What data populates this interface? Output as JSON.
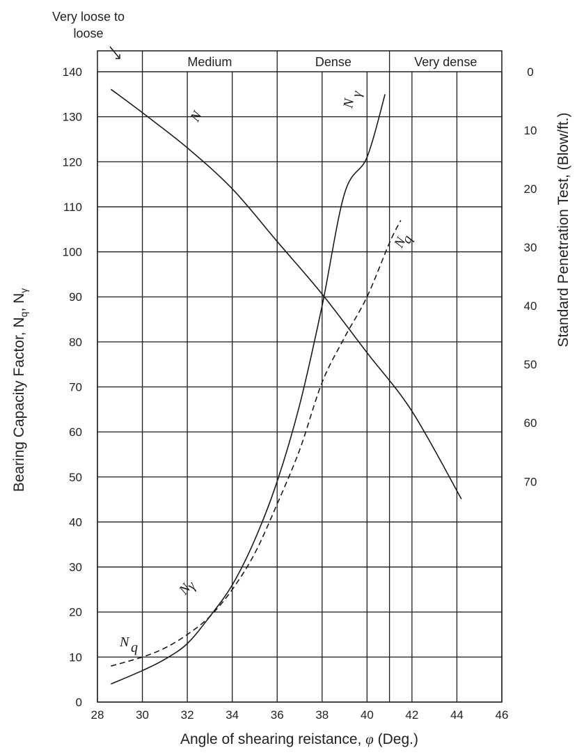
{
  "chart_data": {
    "type": "line",
    "xlabel_text": "Angle of shearing reistance, ",
    "xlabel_symbol": "φ",
    "xlabel_unit": " (Deg.)",
    "ylabel_main": "Bearing Capacity Factor, N",
    "ylabel_sub1": "q",
    "ylabel_sep": ", N",
    "ylabel_sub2": "γ",
    "y2label": "Standard Penetration Test, (Blow/ft.)",
    "xlim": [
      28,
      46
    ],
    "ylim": [
      0,
      140
    ],
    "x_ticks": [
      "28",
      "30",
      "32",
      "34",
      "36",
      "38",
      "40",
      "42",
      "44",
      "46"
    ],
    "y_ticks": [
      "0",
      "10",
      "20",
      "30",
      "40",
      "50",
      "60",
      "70",
      "80",
      "90",
      "100",
      "110",
      "120",
      "130",
      "140"
    ],
    "y2_ticks": [
      "0",
      "10",
      "20",
      "30",
      "40",
      "50",
      "60",
      "70"
    ],
    "grid": true,
    "density_bands": [
      {
        "label": "Very loose to",
        "label2": "loose",
        "from": 28,
        "to": 30
      },
      {
        "label": "Medium",
        "from": 30,
        "to": 36
      },
      {
        "label": "Dense",
        "from": 36,
        "to": 41
      },
      {
        "label": "Very dense",
        "from": 41,
        "to": 46
      }
    ],
    "series": [
      {
        "name": "N",
        "style": "solid",
        "axis": "right (SPT, blows/ft)",
        "x": [
          28.6,
          30,
          32,
          34,
          36,
          38,
          40,
          42,
          44.2
        ],
        "y": [
          3,
          7,
          13,
          20,
          29,
          38,
          48,
          58,
          73
        ]
      },
      {
        "name": "N",
        "subscript": "γ",
        "style": "solid",
        "axis": "left",
        "x": [
          28.6,
          30,
          31,
          32,
          33,
          34,
          35,
          36,
          37,
          38,
          39,
          40,
          40.8
        ],
        "y": [
          4,
          7,
          9.5,
          13,
          19,
          26,
          36,
          49,
          66,
          88,
          113,
          121,
          135
        ]
      },
      {
        "name": "N",
        "subscript": "q",
        "style": "dashed",
        "axis": "left",
        "x": [
          28.6,
          30,
          31,
          32,
          33,
          34,
          35,
          36,
          37,
          38,
          39,
          40,
          41,
          41.5
        ],
        "y": [
          8,
          10,
          12,
          15,
          19,
          25,
          33,
          44,
          56,
          71,
          81,
          90,
          102,
          107
        ]
      }
    ]
  }
}
